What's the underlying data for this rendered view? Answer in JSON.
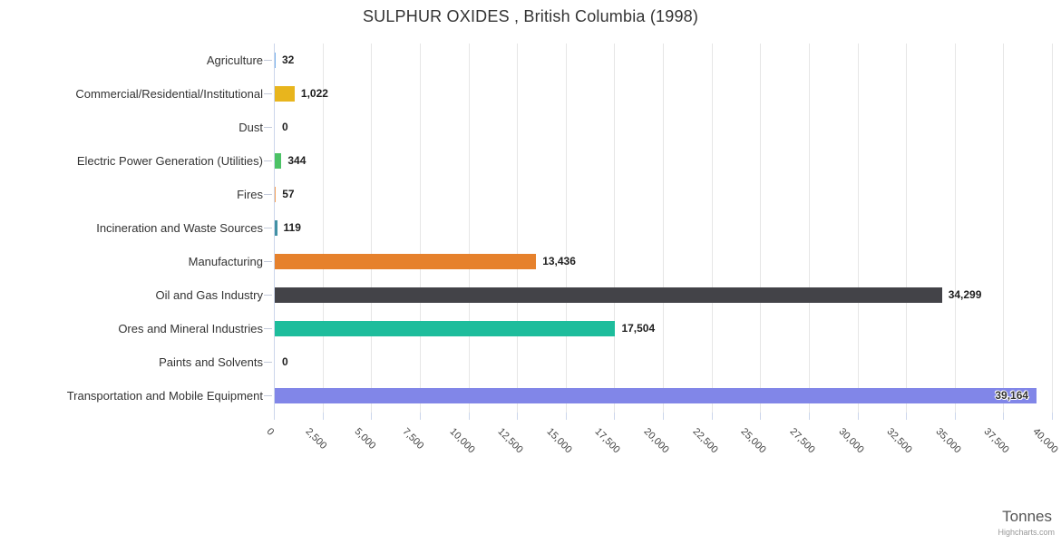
{
  "title": "SULPHUR OXIDES , British Columbia (1998)",
  "x_axis_title": "Tonnes",
  "credit_label": "Highcharts.com",
  "chart_data": {
    "type": "bar",
    "orientation": "horizontal",
    "title": "SULPHUR OXIDES , British Columbia (1998)",
    "xlabel": "Tonnes",
    "ylabel": "",
    "xlim": [
      0,
      40000
    ],
    "grid": true,
    "legend": false,
    "categories": [
      "Agriculture",
      "Commercial/Residential/Institutional",
      "Dust",
      "Electric Power Generation (Utilities)",
      "Fires",
      "Incineration and Waste Sources",
      "Manufacturing",
      "Oil and Gas Industry",
      "Ores and Mineral Industries",
      "Paints and Solvents",
      "Transportation and Mobile Equipment"
    ],
    "values": [
      32,
      1022,
      0,
      344,
      57,
      119,
      13436,
      34299,
      17504,
      0,
      39164
    ],
    "value_labels": [
      "32",
      "1,022",
      "0",
      "344",
      "57",
      "119",
      "13,436",
      "34,299",
      "17,504",
      "0",
      "39,164"
    ],
    "bar_colors": [
      "#7cb5ec",
      "#e8b51d",
      "#90ed7d",
      "#4cc266",
      "#f7a35c",
      "#4291a5",
      "#e6812c",
      "#434348",
      "#1ebd9c",
      "#f15c80",
      "#8186e8"
    ],
    "inside_label_indices": [
      10
    ],
    "xticks": [
      0,
      2500,
      5000,
      7500,
      10000,
      12500,
      15000,
      17500,
      20000,
      22500,
      25000,
      27500,
      30000,
      32500,
      35000,
      37500,
      40000
    ],
    "xtick_labels": [
      "0",
      "2,500",
      "5,000",
      "7,500",
      "10,000",
      "12,500",
      "15,000",
      "17,500",
      "20,000",
      "22,500",
      "25,000",
      "27,500",
      "30,000",
      "32,500",
      "35,000",
      "37,500",
      "40,000"
    ],
    "colors": {
      "gridline": "#e6e6e6",
      "axis_line": "#ccd6eb",
      "title_text": "#333333",
      "category_text": "#333333",
      "value_text": "#202020",
      "tick_text": "#444444",
      "axis_title_text": "#555555",
      "credit_text": "#999999",
      "background": "#ffffff"
    }
  }
}
